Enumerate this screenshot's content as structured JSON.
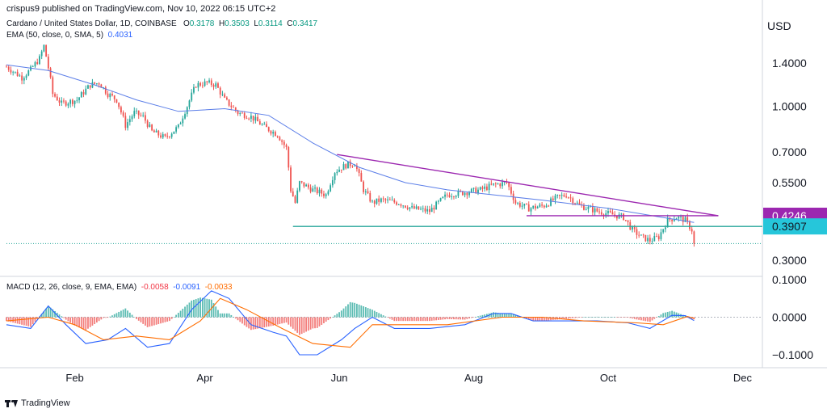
{
  "header": {
    "published": "crispus9 published on TradingView.com, Nov 10, 2022 06:15 UTC+2"
  },
  "legend": {
    "symbol": "Cardano / United States Dollar, 1D, COINBASE",
    "o_label": "O",
    "o_value": "0.3178",
    "h_label": "H",
    "h_value": "0.3503",
    "l_label": "L",
    "l_value": "0.3114",
    "c_label": "C",
    "c_value": "0.3417",
    "ema_label": "EMA (50, close, 0, SMA, 5)",
    "ema_value": "0.4031",
    "macd_label": "MACD (12, 26, close, 9, EMA, EMA)",
    "macd_hist": "-0.0058",
    "macd_line": "-0.0091",
    "macd_signal": "-0.0033"
  },
  "footer": {
    "brand": "TradingView"
  },
  "chart_data": {
    "type": "line",
    "currency_label": "USD",
    "price_axis": {
      "scale": "log",
      "ticks": [
        {
          "value": 1.4,
          "label": "1.4000"
        },
        {
          "value": 1.0,
          "label": "1.0000"
        },
        {
          "value": 0.7,
          "label": "0.7000"
        },
        {
          "value": 0.55,
          "label": "0.5500"
        },
        {
          "value": 0.3,
          "label": "0.3000"
        }
      ],
      "badges": [
        {
          "value": 0.4246,
          "label": "0.4246",
          "color": "#9c27b0"
        },
        {
          "value": 0.3907,
          "label": "0.3907",
          "color": "#26c6da"
        }
      ]
    },
    "macd_axis": {
      "ticks": [
        {
          "value": 0.1,
          "label": "0.1000"
        },
        {
          "value": 0.0,
          "label": "0.0000"
        },
        {
          "value": -0.1,
          "label": "−0.1000"
        }
      ]
    },
    "time_axis": {
      "start": "2022-01-01",
      "end": "2022-12-10",
      "ticks": [
        {
          "date": "2022-02-01",
          "label": "Feb"
        },
        {
          "date": "2022-04-01",
          "label": "Apr"
        },
        {
          "date": "2022-06-01",
          "label": "Jun"
        },
        {
          "date": "2022-08-01",
          "label": "Aug"
        },
        {
          "date": "2022-10-01",
          "label": "Oct"
        },
        {
          "date": "2022-12-01",
          "label": "Dec"
        }
      ]
    },
    "colors": {
      "up": "#26a69a",
      "down": "#ef5350",
      "ema": "#5b7ee8",
      "trend": "#9c27b0",
      "support": "#26a69a",
      "macd": "#2962ff",
      "signal": "#ff6d00",
      "hist_up": "#26a69a",
      "hist_down": "#ef5350"
    },
    "price_keypoints": [
      [
        "2022-01-01",
        1.36
      ],
      [
        "2022-01-08",
        1.25
      ],
      [
        "2022-01-12",
        1.33
      ],
      [
        "2022-01-16",
        1.45
      ],
      [
        "2022-01-18",
        1.6
      ],
      [
        "2022-01-22",
        1.1
      ],
      [
        "2022-01-26",
        1.02
      ],
      [
        "2022-02-02",
        1.05
      ],
      [
        "2022-02-08",
        1.18
      ],
      [
        "2022-02-12",
        1.2
      ],
      [
        "2022-02-16",
        1.1
      ],
      [
        "2022-02-20",
        1.05
      ],
      [
        "2022-02-24",
        0.86
      ],
      [
        "2022-02-28",
        0.95
      ],
      [
        "2022-03-04",
        0.92
      ],
      [
        "2022-03-08",
        0.82
      ],
      [
        "2022-03-14",
        0.78
      ],
      [
        "2022-03-20",
        0.85
      ],
      [
        "2022-03-24",
        1.0
      ],
      [
        "2022-03-28",
        1.18
      ],
      [
        "2022-04-02",
        1.2
      ],
      [
        "2022-04-06",
        1.18
      ],
      [
        "2022-04-10",
        1.05
      ],
      [
        "2022-04-16",
        0.95
      ],
      [
        "2022-04-22",
        0.92
      ],
      [
        "2022-04-28",
        0.85
      ],
      [
        "2022-05-04",
        0.8
      ],
      [
        "2022-05-08",
        0.72
      ],
      [
        "2022-05-10",
        0.52
      ],
      [
        "2022-05-12",
        0.47
      ],
      [
        "2022-05-14",
        0.55
      ],
      [
        "2022-05-20",
        0.52
      ],
      [
        "2022-05-26",
        0.5
      ],
      [
        "2022-05-30",
        0.6
      ],
      [
        "2022-06-04",
        0.63
      ],
      [
        "2022-06-08",
        0.64
      ],
      [
        "2022-06-12",
        0.52
      ],
      [
        "2022-06-16",
        0.47
      ],
      [
        "2022-06-20",
        0.48
      ],
      [
        "2022-06-28",
        0.47
      ],
      [
        "2022-07-04",
        0.45
      ],
      [
        "2022-07-12",
        0.44
      ],
      [
        "2022-07-20",
        0.5
      ],
      [
        "2022-07-28",
        0.51
      ],
      [
        "2022-08-04",
        0.52
      ],
      [
        "2022-08-10",
        0.54
      ],
      [
        "2022-08-16",
        0.55
      ],
      [
        "2022-08-20",
        0.47
      ],
      [
        "2022-08-26",
        0.45
      ],
      [
        "2022-09-02",
        0.46
      ],
      [
        "2022-09-08",
        0.49
      ],
      [
        "2022-09-12",
        0.5
      ],
      [
        "2022-09-18",
        0.46
      ],
      [
        "2022-09-26",
        0.44
      ],
      [
        "2022-10-02",
        0.43
      ],
      [
        "2022-10-08",
        0.42
      ],
      [
        "2022-10-12",
        0.38
      ],
      [
        "2022-10-16",
        0.36
      ],
      [
        "2022-10-20",
        0.35
      ],
      [
        "2022-10-24",
        0.36
      ],
      [
        "2022-10-28",
        0.41
      ],
      [
        "2022-11-01",
        0.42
      ],
      [
        "2022-11-05",
        0.41
      ],
      [
        "2022-11-08",
        0.38
      ],
      [
        "2022-11-09",
        0.3417
      ]
    ],
    "ema_keypoints": [
      [
        "2022-01-01",
        1.38
      ],
      [
        "2022-01-20",
        1.32
      ],
      [
        "2022-02-10",
        1.18
      ],
      [
        "2022-03-01",
        1.05
      ],
      [
        "2022-03-20",
        0.96
      ],
      [
        "2022-04-10",
        0.98
      ],
      [
        "2022-04-30",
        0.93
      ],
      [
        "2022-05-20",
        0.75
      ],
      [
        "2022-06-10",
        0.62
      ],
      [
        "2022-07-01",
        0.55
      ],
      [
        "2022-07-20",
        0.52
      ],
      [
        "2022-08-10",
        0.5
      ],
      [
        "2022-09-01",
        0.48
      ],
      [
        "2022-10-01",
        0.45
      ],
      [
        "2022-10-25",
        0.42
      ],
      [
        "2022-11-09",
        0.4031
      ]
    ],
    "macd_keypoints": [
      [
        "2022-01-01",
        -0.02
      ],
      [
        "2022-01-12",
        -0.03
      ],
      [
        "2022-01-20",
        0.03
      ],
      [
        "2022-01-28",
        -0.02
      ],
      [
        "2022-02-06",
        -0.07
      ],
      [
        "2022-02-16",
        -0.06
      ],
      [
        "2022-02-24",
        -0.03
      ],
      [
        "2022-03-06",
        -0.08
      ],
      [
        "2022-03-16",
        -0.07
      ],
      [
        "2022-03-26",
        0.02
      ],
      [
        "2022-04-04",
        0.07
      ],
      [
        "2022-04-12",
        0.05
      ],
      [
        "2022-04-22",
        -0.02
      ],
      [
        "2022-05-02",
        -0.04
      ],
      [
        "2022-05-08",
        -0.05
      ],
      [
        "2022-05-14",
        -0.1
      ],
      [
        "2022-05-22",
        -0.1
      ],
      [
        "2022-06-02",
        -0.06
      ],
      [
        "2022-06-08",
        -0.03
      ],
      [
        "2022-06-16",
        0.0
      ],
      [
        "2022-06-26",
        -0.03
      ],
      [
        "2022-07-12",
        -0.03
      ],
      [
        "2022-07-28",
        -0.02
      ],
      [
        "2022-08-10",
        0.01
      ],
      [
        "2022-08-18",
        0.01
      ],
      [
        "2022-08-28",
        -0.01
      ],
      [
        "2022-09-12",
        -0.01
      ],
      [
        "2022-09-26",
        -0.01
      ],
      [
        "2022-10-10",
        -0.015
      ],
      [
        "2022-10-20",
        -0.03
      ],
      [
        "2022-10-30",
        0.005
      ],
      [
        "2022-11-05",
        0.004
      ],
      [
        "2022-11-09",
        -0.0091
      ]
    ],
    "signal_keypoints": [
      [
        "2022-01-01",
        -0.01
      ],
      [
        "2022-01-20",
        0.0
      ],
      [
        "2022-02-01",
        -0.02
      ],
      [
        "2022-02-14",
        -0.06
      ],
      [
        "2022-03-01",
        -0.05
      ],
      [
        "2022-03-16",
        -0.06
      ],
      [
        "2022-03-30",
        -0.01
      ],
      [
        "2022-04-08",
        0.05
      ],
      [
        "2022-04-20",
        0.02
      ],
      [
        "2022-05-06",
        -0.03
      ],
      [
        "2022-05-20",
        -0.07
      ],
      [
        "2022-06-06",
        -0.08
      ],
      [
        "2022-06-16",
        -0.02
      ],
      [
        "2022-06-30",
        -0.02
      ],
      [
        "2022-07-20",
        -0.02
      ],
      [
        "2022-08-14",
        0.0
      ],
      [
        "2022-09-01",
        0.0
      ],
      [
        "2022-09-20",
        -0.01
      ],
      [
        "2022-10-14",
        -0.015
      ],
      [
        "2022-10-26",
        -0.02
      ],
      [
        "2022-11-06",
        0.002
      ],
      [
        "2022-11-09",
        -0.0033
      ]
    ],
    "trendlines": [
      {
        "name": "",
        "color": "#9c27b0",
        "points": [
          [
            "2022-05-31",
            0.685
          ],
          [
            "2022-11-20",
            0.4246
          ]
        ]
      },
      {
        "name": "",
        "color": "#9c27b0",
        "points": [
          [
            "2022-08-25",
            0.4246
          ],
          [
            "2022-11-20",
            0.4246
          ]
        ]
      },
      {
        "name": "",
        "color": "#26a69a",
        "points": [
          [
            "2022-05-11",
            0.3907
          ],
          [
            "2022-12-10",
            0.3907
          ]
        ]
      },
      {
        "name": "",
        "color": "#26a69a",
        "dotted": true,
        "points": [
          [
            "2022-01-01",
            0.3417
          ],
          [
            "2022-12-10",
            0.3417
          ]
        ]
      }
    ]
  }
}
